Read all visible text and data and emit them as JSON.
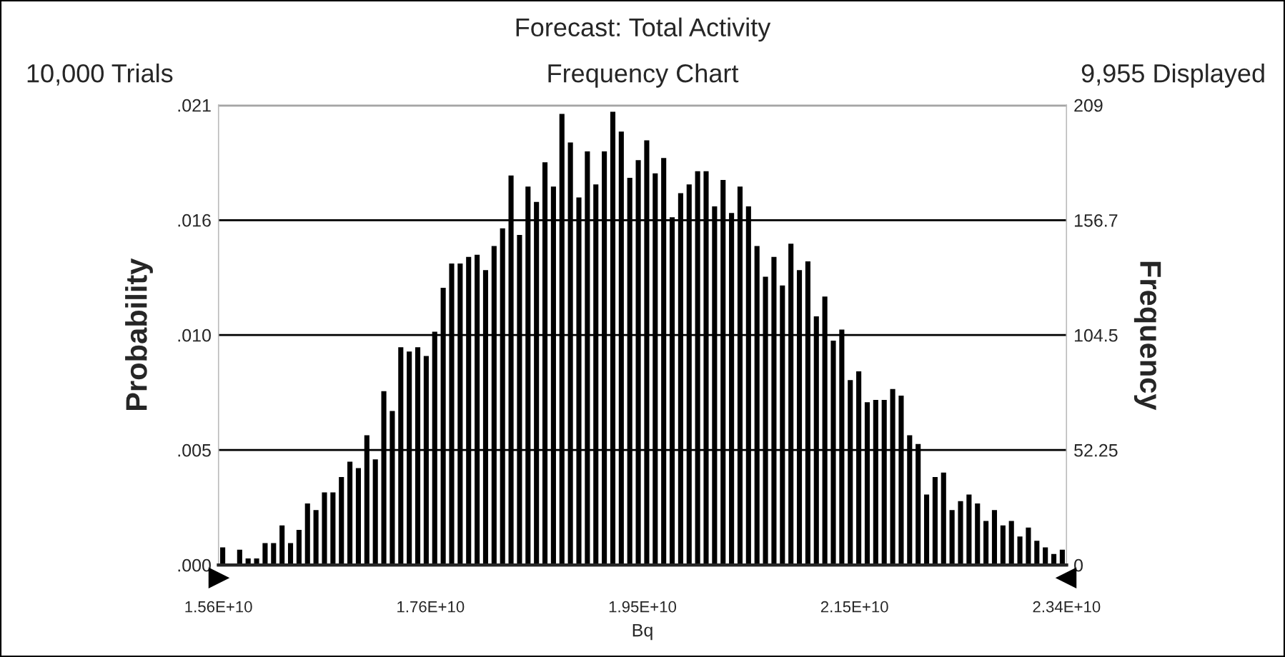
{
  "chart_data": {
    "type": "histogram",
    "title": "Forecast: Total Activity",
    "annotations": [
      "10,000 Trials",
      "Frequency Chart",
      "9,955 Displayed"
    ],
    "xlabel": "Bq",
    "ylabel": "Probability",
    "y2label": "Frequency",
    "bins": [
      15600000000.0,
      15678000000.0,
      15756000000.0,
      15834000000.0,
      15912000000.0,
      15990000000.0,
      16068000000.0,
      16146000000.0,
      16224000000.0,
      16302000000.0,
      16380000000.0,
      16458000000.0,
      16536000000.0,
      16614000000.0,
      16692000000.0,
      16770000000.0,
      16848000000.0,
      16926000000.0,
      17004000000.0,
      17082000000.0,
      17160000000.0,
      17238000000.0,
      17316000000.0,
      17394000000.0,
      17472000000.0,
      17550000000.0,
      17628000000.0,
      17706000000.0,
      17784000000.0,
      17862000000.0,
      17940000000.0,
      18018000000.0,
      18096000000.0,
      18174000000.0,
      18252000000.0,
      18330000000.0,
      18408000000.0,
      18486000000.0,
      18564000000.0,
      18642000000.0,
      18720000000.0,
      18798000000.0,
      18876000000.0,
      18954000000.0,
      19032000000.0,
      19110000000.0,
      19188000000.0,
      19266000000.0,
      19344000000.0,
      19422000000.0,
      19500000000.0,
      19578000000.0,
      19656000000.0,
      19734000000.0,
      19812000000.0,
      19890000000.0,
      19968000000.0,
      20046000000.0,
      20124000000.0,
      20202000000.0,
      20280000000.0,
      20358000000.0,
      20436000000.0,
      20514000000.0,
      20592000000.0,
      20670000000.0,
      20748000000.0,
      20826000000.0,
      20904000000.0,
      20982000000.0,
      21060000000.0,
      21138000000.0,
      21216000000.0,
      21294000000.0,
      21372000000.0,
      21450000000.0,
      21528000000.0,
      21606000000.0,
      21684000000.0,
      21762000000.0,
      21840000000.0,
      21918000000.0,
      21996000000.0,
      22074000000.0,
      22152000000.0,
      22230000000.0,
      22308000000.0,
      22386000000.0,
      22464000000.0,
      22542000000.0,
      22620000000.0,
      22698000000.0,
      22776000000.0,
      22854000000.0,
      22932000000.0,
      23010000000.0,
      23088000000.0,
      23166000000.0,
      23244000000.0,
      23322000000.0,
      23400000000.0
    ],
    "series": [
      {
        "color": "#000000",
        "axis": "y2",
        "values": [
          8,
          0,
          7,
          3,
          3,
          10,
          10,
          18,
          10,
          16,
          28,
          25,
          33,
          33,
          40,
          47,
          44,
          59,
          48,
          79,
          70,
          99,
          97,
          99,
          95,
          106,
          126,
          137,
          137,
          140,
          141,
          134,
          145,
          153,
          177,
          150,
          172,
          165,
          183,
          172,
          205,
          192,
          167,
          188,
          173,
          188,
          206,
          197,
          176,
          184,
          193,
          178,
          185,
          158,
          169,
          173,
          179,
          179,
          163,
          175,
          160,
          172,
          163,
          145,
          131,
          140,
          127,
          146,
          134,
          138,
          113,
          122,
          102,
          107,
          84,
          88,
          74,
          75,
          75,
          80,
          77,
          59,
          55,
          32,
          40,
          42,
          25,
          29,
          32,
          28,
          20,
          25,
          18,
          20,
          13,
          17,
          11,
          8,
          5,
          7
        ]
      }
    ],
    "xlim": [
      15600000000.0,
      23400000000.0
    ],
    "xticks": [
      {
        "value": 15600000000.0,
        "label": "1.56E+10"
      },
      {
        "value": 17550000000.0,
        "label": "1.76E+10"
      },
      {
        "value": 19500000000.0,
        "label": "1.95E+10"
      },
      {
        "value": 21450000000.0,
        "label": "2.15E+10"
      },
      {
        "value": 23400000000.0,
        "label": "2.34E+10"
      }
    ],
    "ylim": [
      0,
      0.021
    ],
    "yticks": [
      {
        "value": 0,
        "label": ".000"
      },
      {
        "value": 0.00525,
        "label": ".005"
      },
      {
        "value": 0.0105,
        "label": ".010"
      },
      {
        "value": 0.01575,
        "label": ".016"
      },
      {
        "value": 0.021,
        "label": ".021"
      }
    ],
    "y2lim": [
      0,
      209
    ],
    "y2ticks": [
      0,
      52.25,
      104.5,
      156.7,
      209
    ],
    "grid": "y",
    "legend": false
  }
}
